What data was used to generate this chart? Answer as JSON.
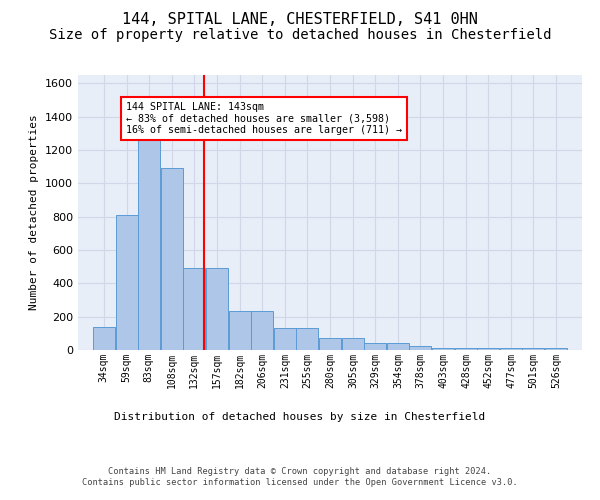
{
  "title": "144, SPITAL LANE, CHESTERFIELD, S41 0HN",
  "subtitle": "Size of property relative to detached houses in Chesterfield",
  "xlabel": "Distribution of detached houses by size in Chesterfield",
  "ylabel": "Number of detached properties",
  "categories": [
    "34sqm",
    "59sqm",
    "83sqm",
    "108sqm",
    "132sqm",
    "157sqm",
    "182sqm",
    "206sqm",
    "231sqm",
    "255sqm",
    "280sqm",
    "305sqm",
    "329sqm",
    "354sqm",
    "378sqm",
    "403sqm",
    "428sqm",
    "452sqm",
    "477sqm",
    "501sqm",
    "526sqm"
  ],
  "values": [
    140,
    810,
    1300,
    1090,
    490,
    490,
    235,
    235,
    135,
    135,
    75,
    75,
    40,
    40,
    25,
    15,
    15,
    10,
    10,
    10,
    10
  ],
  "bar_color": "#aec6e8",
  "bar_edge_color": "#5b9bd5",
  "grid_color": "#d0d8e8",
  "background_color": "#e8eef8",
  "property_line_x": 143,
  "property_line_color": "red",
  "annotation_text": "144 SPITAL LANE: 143sqm\n← 83% of detached houses are smaller (3,598)\n16% of semi-detached houses are larger (711) →",
  "annotation_box_color": "white",
  "annotation_box_edge": "red",
  "ylim": [
    0,
    1650
  ],
  "title_fontsize": 11,
  "subtitle_fontsize": 10,
  "footer_text": "Contains HM Land Registry data © Crown copyright and database right 2024.\nContains public sector information licensed under the Open Government Licence v3.0.",
  "bin_width": 25,
  "bin_centers": [
    34,
    59,
    83,
    108,
    132,
    157,
    182,
    206,
    231,
    255,
    280,
    305,
    329,
    354,
    378,
    403,
    428,
    452,
    477,
    501,
    526
  ]
}
